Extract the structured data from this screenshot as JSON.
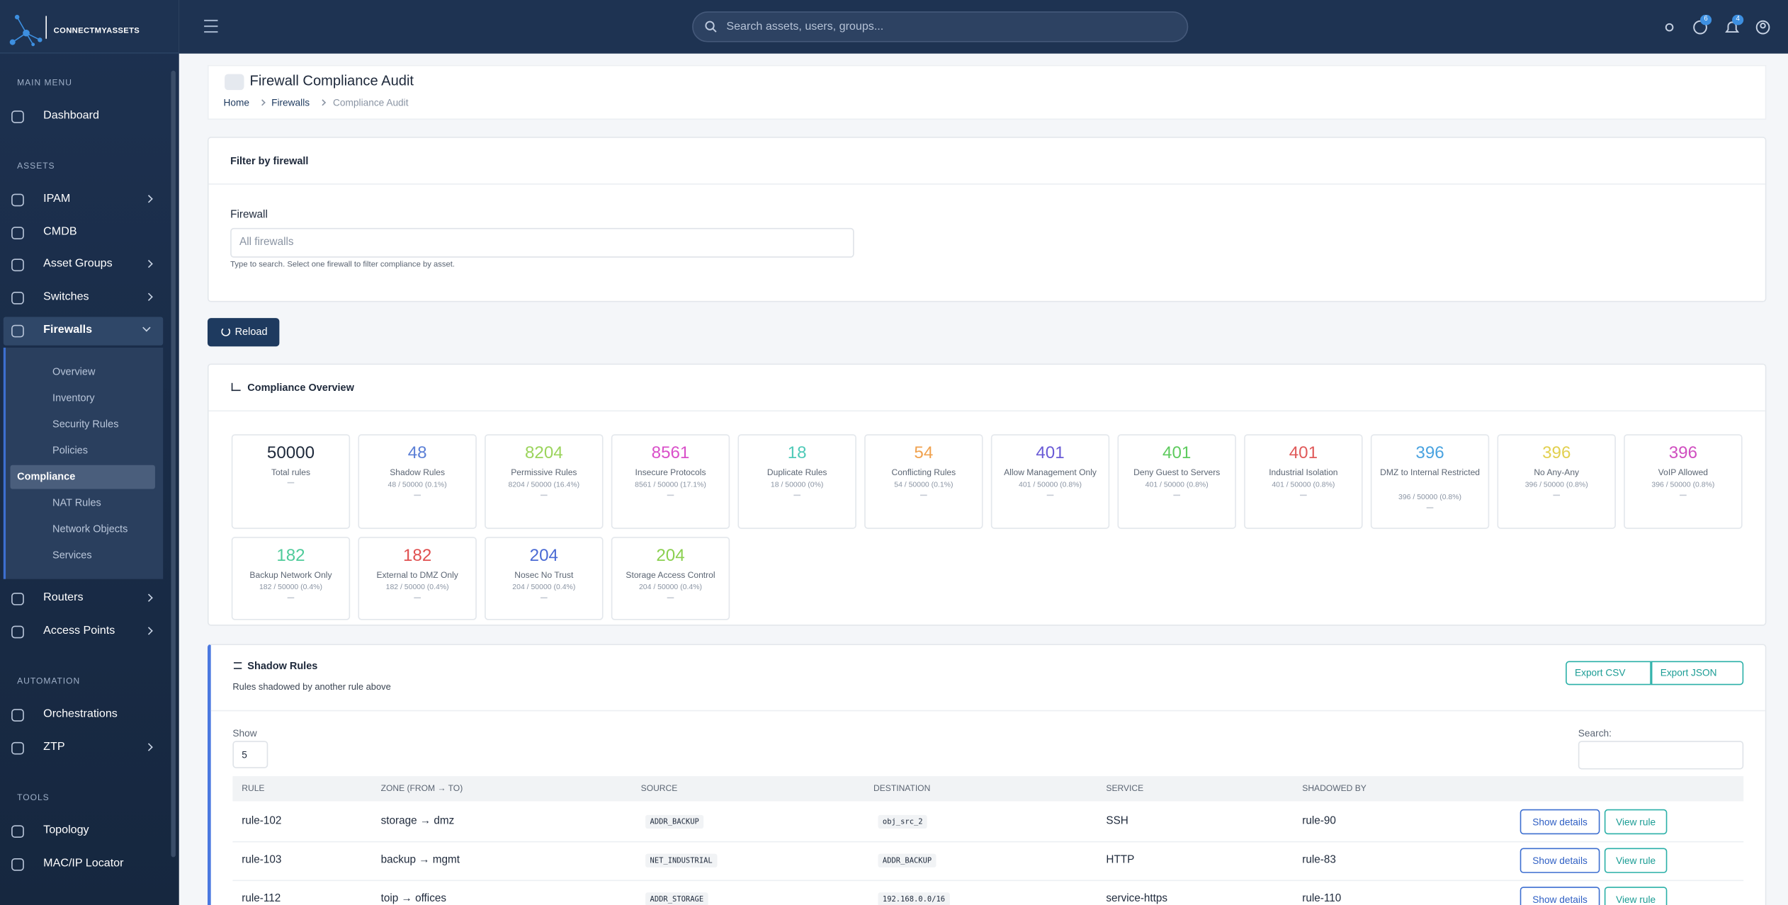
{
  "header": {
    "brand": "CONNECTMYASSETS",
    "search_placeholder": "Search assets, users, groups...",
    "badges": [
      "6",
      "4"
    ]
  },
  "sidebar": {
    "sections": [
      {
        "title": "MAIN MENU",
        "items": [
          "Dashboard"
        ]
      },
      {
        "title": "ASSETS",
        "items": [
          "IPAM",
          "CMDB",
          "Asset Groups",
          "Switches",
          "Firewalls",
          "Routers",
          "Access Points"
        ]
      },
      {
        "title": "AUTOMATION",
        "items": [
          "Orchestrations",
          "ZTP"
        ]
      },
      {
        "title": "TOOLS",
        "items": [
          "Topology",
          "MAC/IP Locator"
        ]
      }
    ],
    "submenu": [
      "Overview",
      "Inventory",
      "Security Rules",
      "Policies",
      "Compliance",
      "NAT Rules",
      "Network Objects",
      "Services"
    ]
  },
  "page": {
    "title": "Firewall Compliance Audit",
    "breadcrumb": [
      "Home",
      "Firewalls",
      "Compliance Audit"
    ]
  },
  "filter": {
    "title": "Filter by firewall",
    "label": "Firewall",
    "placeholder": "All firewalls",
    "help": "Type to search. Select one firewall to filter compliance by asset."
  },
  "reload": "Reload",
  "overview": {
    "title": "Compliance Overview",
    "cards": [
      {
        "value": 50000,
        "label": "Total rules",
        "color": "#1e293b"
      },
      {
        "value": 48,
        "label": "Shadow Rules",
        "detail": "48 / 50000 (0.1%)",
        "color": "#5b7fd6"
      },
      {
        "value": 8204,
        "label": "Permissive Rules",
        "detail": "8204 / 50000 (16.4%)",
        "color": "#9bd45c"
      },
      {
        "value": 8561,
        "label": "Insecure Protocols",
        "detail": "8561 / 50000 (17.1%)",
        "color": "#d94fc9"
      },
      {
        "value": 18,
        "label": "Duplicate Rules",
        "detail": "18 / 50000 (0%)",
        "color": "#4fcab8"
      },
      {
        "value": 54,
        "label": "Conflicting Rules",
        "detail": "54 / 50000 (0.1%)",
        "color": "#f0a24f"
      },
      {
        "value": 401,
        "label": "Allow Management Only",
        "detail": "401 / 50000 (0.8%)",
        "color": "#6a5bd6"
      },
      {
        "value": 401,
        "label": "Deny Guest to Servers",
        "detail": "401 / 50000 (0.8%)",
        "color": "#5ecb5e"
      },
      {
        "value": 401,
        "label": "Industrial Isolation",
        "detail": "401 / 50000 (0.8%)",
        "color": "#e05a5a"
      },
      {
        "value": 396,
        "label": "DMZ to Internal Restricted",
        "detail": "396 / 50000 (0.8%)",
        "color": "#4aa3e0"
      },
      {
        "value": 396,
        "label": "No Any-Any",
        "detail": "396 / 50000 (0.8%)",
        "color": "#e2d050"
      },
      {
        "value": 396,
        "label": "VoIP Allowed",
        "detail": "396 / 50000 (0.8%)",
        "color": "#d04fc0"
      },
      {
        "value": 182,
        "label": "Backup Network Only",
        "detail": "182 / 50000 (0.4%)",
        "color": "#4fcb9a"
      },
      {
        "value": 182,
        "label": "External to DMZ Only",
        "detail": "182 / 50000 (0.4%)",
        "color": "#e05050"
      },
      {
        "value": 204,
        "label": "Nosec No Trust",
        "detail": "204 / 50000 (0.4%)",
        "color": "#4a6ad4"
      },
      {
        "value": 204,
        "label": "Storage Access Control",
        "detail": "204 / 50000 (0.4%)",
        "color": "#8bd050"
      }
    ]
  },
  "shadow": {
    "title": "Shadow Rules",
    "subtitle": "Rules shadowed by another rule above",
    "export": [
      "Export CSV",
      "Export JSON"
    ],
    "show_label": "Show",
    "show_value": "5",
    "search_label": "Search:",
    "table": {
      "headers": [
        "RULE",
        "ZONE (FROM → TO)",
        "SOURCE",
        "DESTINATION",
        "SERVICE",
        "SHADOWED BY"
      ],
      "rows": [
        [
          "rule-102",
          "storage → dmz",
          "ADDR_BACKUP",
          "obj_src_2",
          "SSH",
          "rule-90"
        ],
        [
          "rule-103",
          "backup → mgmt",
          "NET_INDUSTRIAL",
          "ADDR_BACKUP",
          "HTTP",
          "rule-83"
        ],
        [
          "rule-112",
          "toip → offices",
          "ADDR_STORAGE",
          "192.168.0.0/16",
          "service-https",
          "rule-110"
        ]
      ],
      "actions": [
        "Show details",
        "View rule"
      ]
    }
  }
}
